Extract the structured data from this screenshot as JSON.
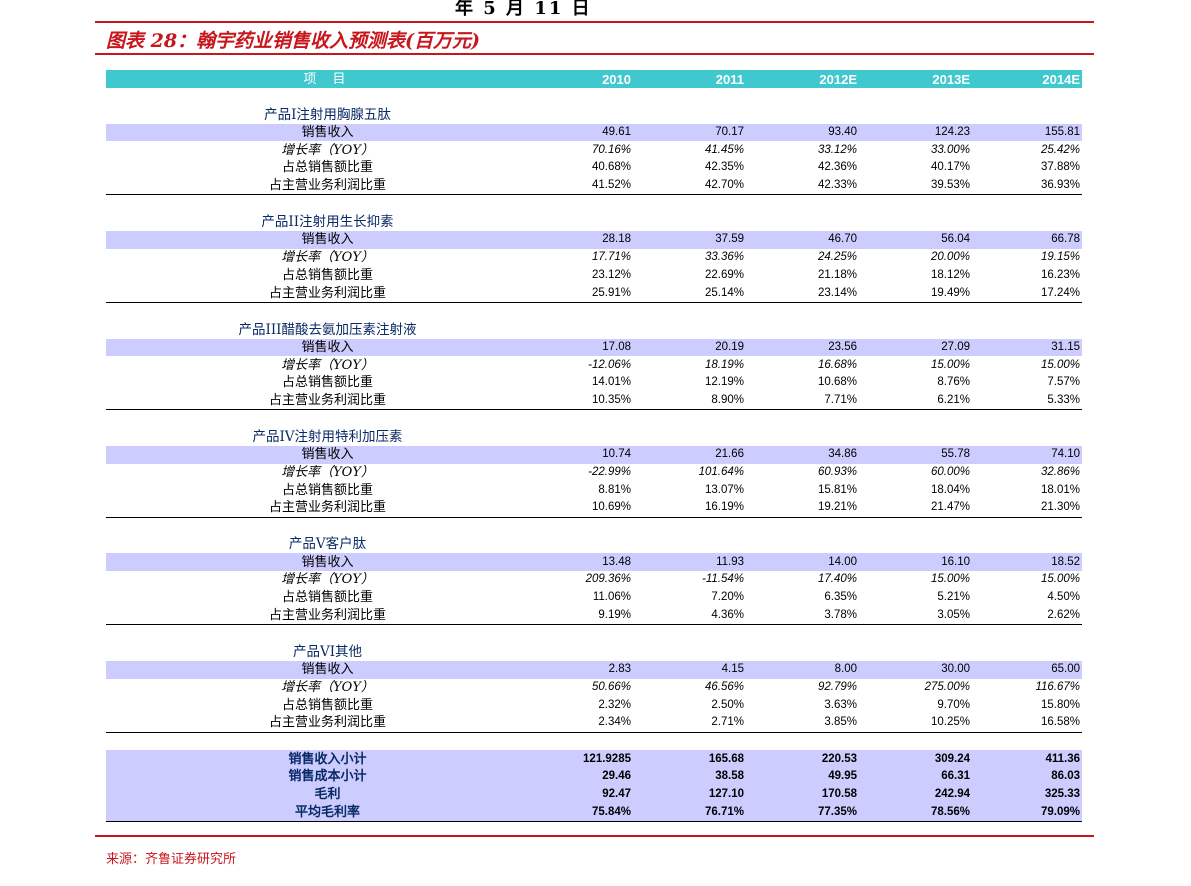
{
  "header": {
    "top_fragment": "年 5 月 11 日",
    "caption": "图表 28：翰宇药业销售收入预测表(百万元)"
  },
  "table": {
    "columns": [
      "项    目",
      "2010",
      "2011",
      "2012E",
      "2013E",
      "2014E"
    ],
    "sections": [
      {
        "title": "产品I注射用胸腺五肽",
        "rows": [
          {
            "label": "销售收入",
            "values": [
              "49.61",
              "70.17",
              "93.40",
              "124.23",
              "155.81"
            ]
          },
          {
            "label": "增长率（YOY）",
            "values": [
              "70.16%",
              "41.45%",
              "33.12%",
              "33.00%",
              "25.42%"
            ]
          },
          {
            "label": "占总销售额比重",
            "values": [
              "40.68%",
              "42.35%",
              "42.36%",
              "40.17%",
              "37.88%"
            ]
          },
          {
            "label": "占主营业务利润比重",
            "values": [
              "41.52%",
              "42.70%",
              "42.33%",
              "39.53%",
              "36.93%"
            ]
          }
        ]
      },
      {
        "title": "产品II注射用生长抑素",
        "rows": [
          {
            "label": "销售收入",
            "values": [
              "28.18",
              "37.59",
              "46.70",
              "56.04",
              "66.78"
            ]
          },
          {
            "label": "增长率（YOY）",
            "values": [
              "17.71%",
              "33.36%",
              "24.25%",
              "20.00%",
              "19.15%"
            ]
          },
          {
            "label": "占总销售额比重",
            "values": [
              "23.12%",
              "22.69%",
              "21.18%",
              "18.12%",
              "16.23%"
            ]
          },
          {
            "label": "占主营业务利润比重",
            "values": [
              "25.91%",
              "25.14%",
              "23.14%",
              "19.49%",
              "17.24%"
            ]
          }
        ]
      },
      {
        "title": "产品III醋酸去氨加压素注射液",
        "rows": [
          {
            "label": "销售收入",
            "values": [
              "17.08",
              "20.19",
              "23.56",
              "27.09",
              "31.15"
            ]
          },
          {
            "label": "增长率（YOY）",
            "values": [
              "-12.06%",
              "18.19%",
              "16.68%",
              "15.00%",
              "15.00%"
            ]
          },
          {
            "label": "占总销售额比重",
            "values": [
              "14.01%",
              "12.19%",
              "10.68%",
              "8.76%",
              "7.57%"
            ]
          },
          {
            "label": "占主营业务利润比重",
            "values": [
              "10.35%",
              "8.90%",
              "7.71%",
              "6.21%",
              "5.33%"
            ]
          }
        ]
      },
      {
        "title": "产品IV注射用特利加压素",
        "rows": [
          {
            "label": "销售收入",
            "values": [
              "10.74",
              "21.66",
              "34.86",
              "55.78",
              "74.10"
            ]
          },
          {
            "label": "增长率（YOY）",
            "values": [
              "-22.99%",
              "101.64%",
              "60.93%",
              "60.00%",
              "32.86%"
            ]
          },
          {
            "label": "占总销售额比重",
            "values": [
              "8.81%",
              "13.07%",
              "15.81%",
              "18.04%",
              "18.01%"
            ]
          },
          {
            "label": "占主营业务利润比重",
            "values": [
              "10.69%",
              "16.19%",
              "19.21%",
              "21.47%",
              "21.30%"
            ]
          }
        ]
      },
      {
        "title": "产品V客户肽",
        "rows": [
          {
            "label": "销售收入",
            "values": [
              "13.48",
              "11.93",
              "14.00",
              "16.10",
              "18.52"
            ]
          },
          {
            "label": "增长率（YOY）",
            "values": [
              "209.36%",
              "-11.54%",
              "17.40%",
              "15.00%",
              "15.00%"
            ]
          },
          {
            "label": "占总销售额比重",
            "values": [
              "11.06%",
              "7.20%",
              "6.35%",
              "5.21%",
              "4.50%"
            ]
          },
          {
            "label": "占主营业务利润比重",
            "values": [
              "9.19%",
              "4.36%",
              "3.78%",
              "3.05%",
              "2.62%"
            ]
          }
        ]
      },
      {
        "title": "产品VI其他",
        "rows": [
          {
            "label": "销售收入",
            "values": [
              "2.83",
              "4.15",
              "8.00",
              "30.00",
              "65.00"
            ]
          },
          {
            "label": "增长率（YOY）",
            "values": [
              "50.66%",
              "46.56%",
              "92.79%",
              "275.00%",
              "116.67%"
            ]
          },
          {
            "label": "占总销售额比重",
            "values": [
              "2.32%",
              "2.50%",
              "3.63%",
              "9.70%",
              "15.80%"
            ]
          },
          {
            "label": "占主营业务利润比重",
            "values": [
              "2.34%",
              "2.71%",
              "3.85%",
              "10.25%",
              "16.58%"
            ]
          }
        ]
      }
    ],
    "summary": [
      {
        "label": "销售收入小计",
        "values": [
          "121.9285",
          "165.68",
          "220.53",
          "309.24",
          "411.36"
        ]
      },
      {
        "label": "销售成本小计",
        "values": [
          "29.46",
          "38.58",
          "49.95",
          "66.31",
          "86.03"
        ]
      },
      {
        "label": "毛利",
        "values": [
          "92.47",
          "127.10",
          "170.58",
          "242.94",
          "325.33"
        ]
      },
      {
        "label": "平均毛利率",
        "values": [
          "75.84%",
          "76.71%",
          "77.35%",
          "78.56%",
          "79.09%"
        ]
      }
    ]
  },
  "footer": {
    "source": "来源：齐鲁证券研究所"
  },
  "colors": {
    "accent_red": "#c8161d",
    "header_teal": "#3fc8cd",
    "band_lavender": "#ccccff"
  }
}
